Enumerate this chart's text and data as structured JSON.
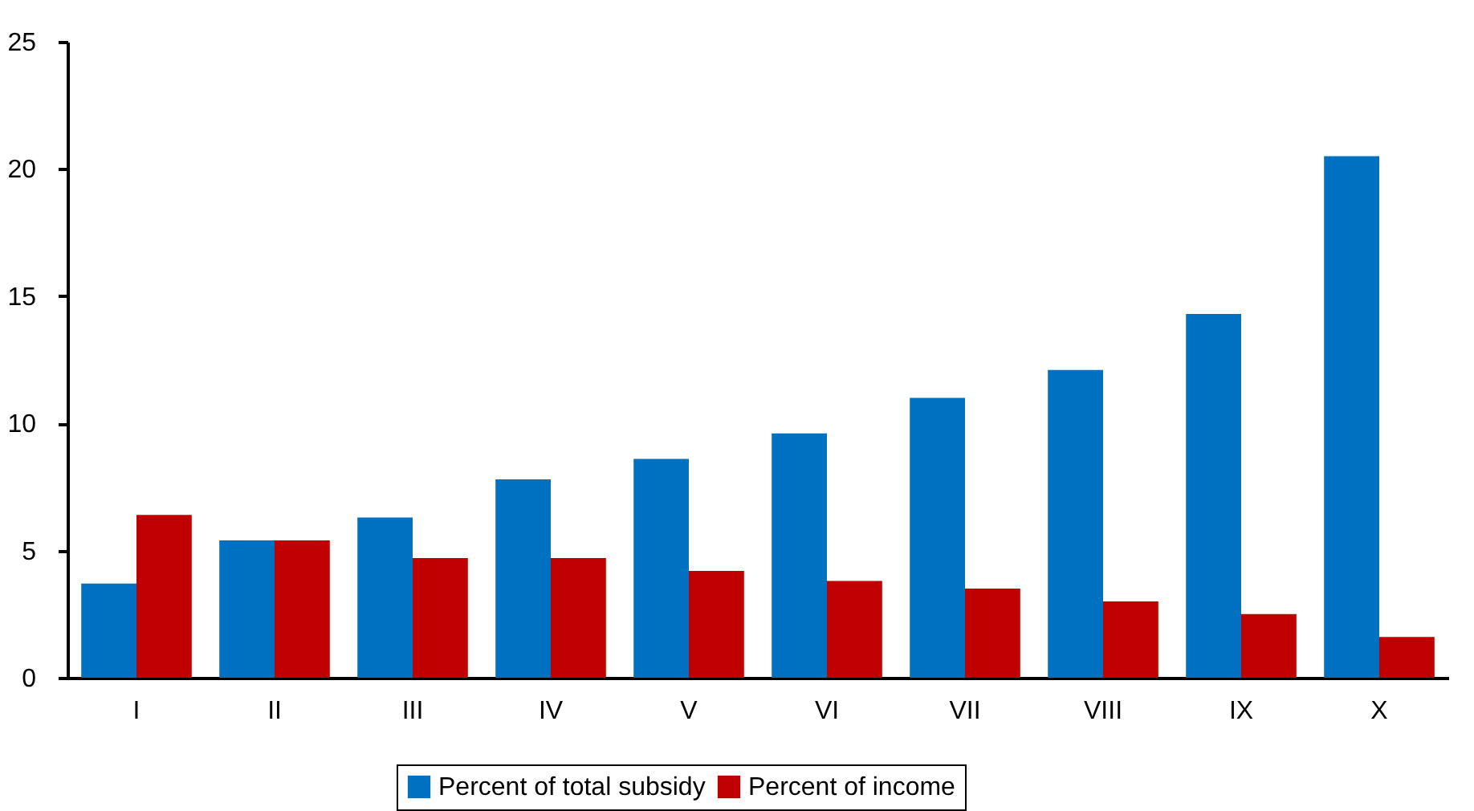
{
  "chart_data": {
    "type": "bar",
    "categories": [
      "I",
      "II",
      "III",
      "IV",
      "V",
      "VI",
      "VII",
      "VIII",
      "IX",
      "X"
    ],
    "series": [
      {
        "name": "Percent of total subsidy",
        "color": "#0070c0",
        "values": [
          3.7,
          5.4,
          6.3,
          7.8,
          8.6,
          9.6,
          11.0,
          12.1,
          14.3,
          20.5
        ]
      },
      {
        "name": "Percent of income",
        "color": "#c00000",
        "values": [
          6.4,
          5.4,
          4.7,
          4.7,
          4.2,
          3.8,
          3.5,
          3.0,
          2.5,
          1.6
        ]
      }
    ],
    "ylim": [
      0,
      25
    ],
    "yticks": [
      0,
      5,
      10,
      15,
      20,
      25
    ],
    "grid": false,
    "legend": "bottom"
  }
}
